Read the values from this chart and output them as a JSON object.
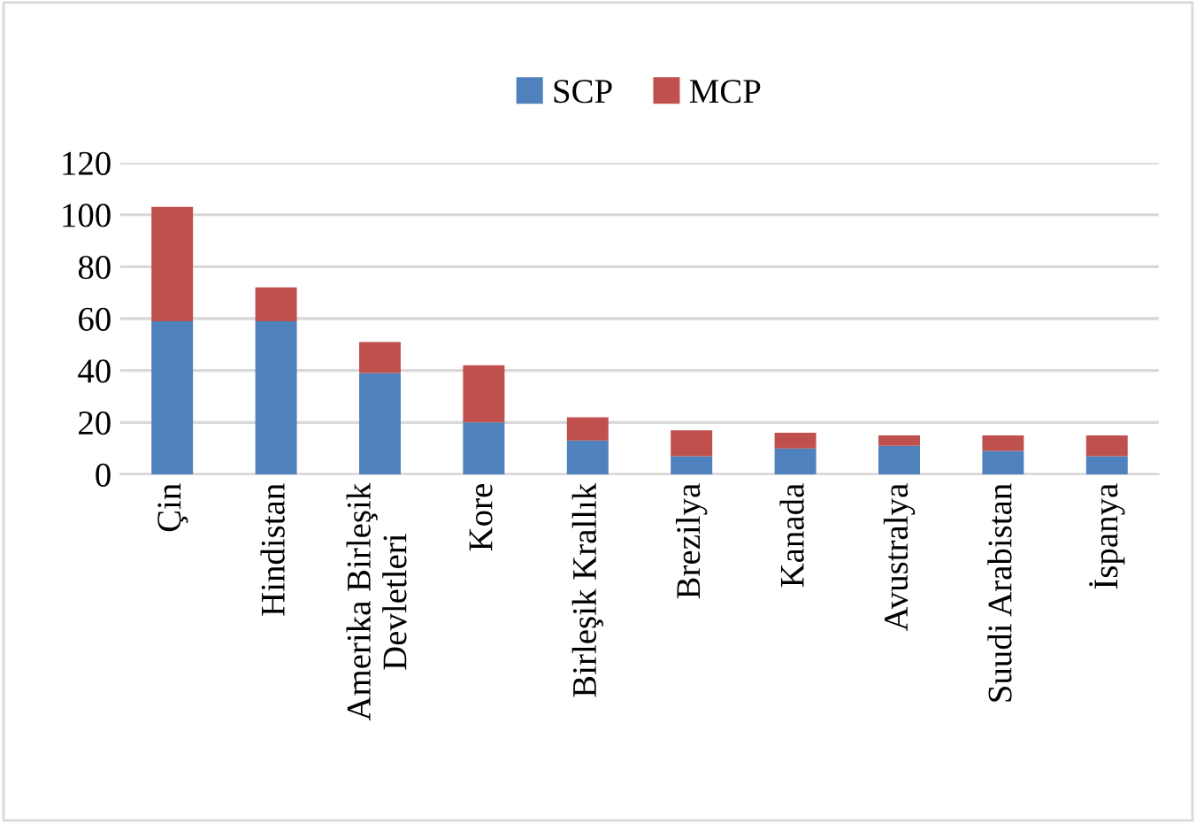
{
  "chart_data": {
    "type": "bar",
    "stacked": true,
    "categories": [
      "Çin",
      "Hindistan",
      "Amerika Birleşik\nDevletleri",
      "Kore",
      "Birleşik Krallık",
      "Brezilya",
      "Kanada",
      "Avustralya",
      "Suudi Arabistan",
      "İspanya"
    ],
    "series": [
      {
        "name": "SCP",
        "color": "#4f81bd",
        "values": [
          59,
          59,
          39,
          20,
          13,
          7,
          10,
          11,
          9,
          7
        ]
      },
      {
        "name": "MCP",
        "color": "#c0504d",
        "values": [
          44,
          13,
          12,
          22,
          9,
          10,
          6,
          4,
          6,
          8
        ]
      }
    ],
    "ylim": [
      0,
      120
    ],
    "yticks": [
      0,
      20,
      40,
      60,
      80,
      100,
      120
    ],
    "grid": "y",
    "legend": "top"
  }
}
